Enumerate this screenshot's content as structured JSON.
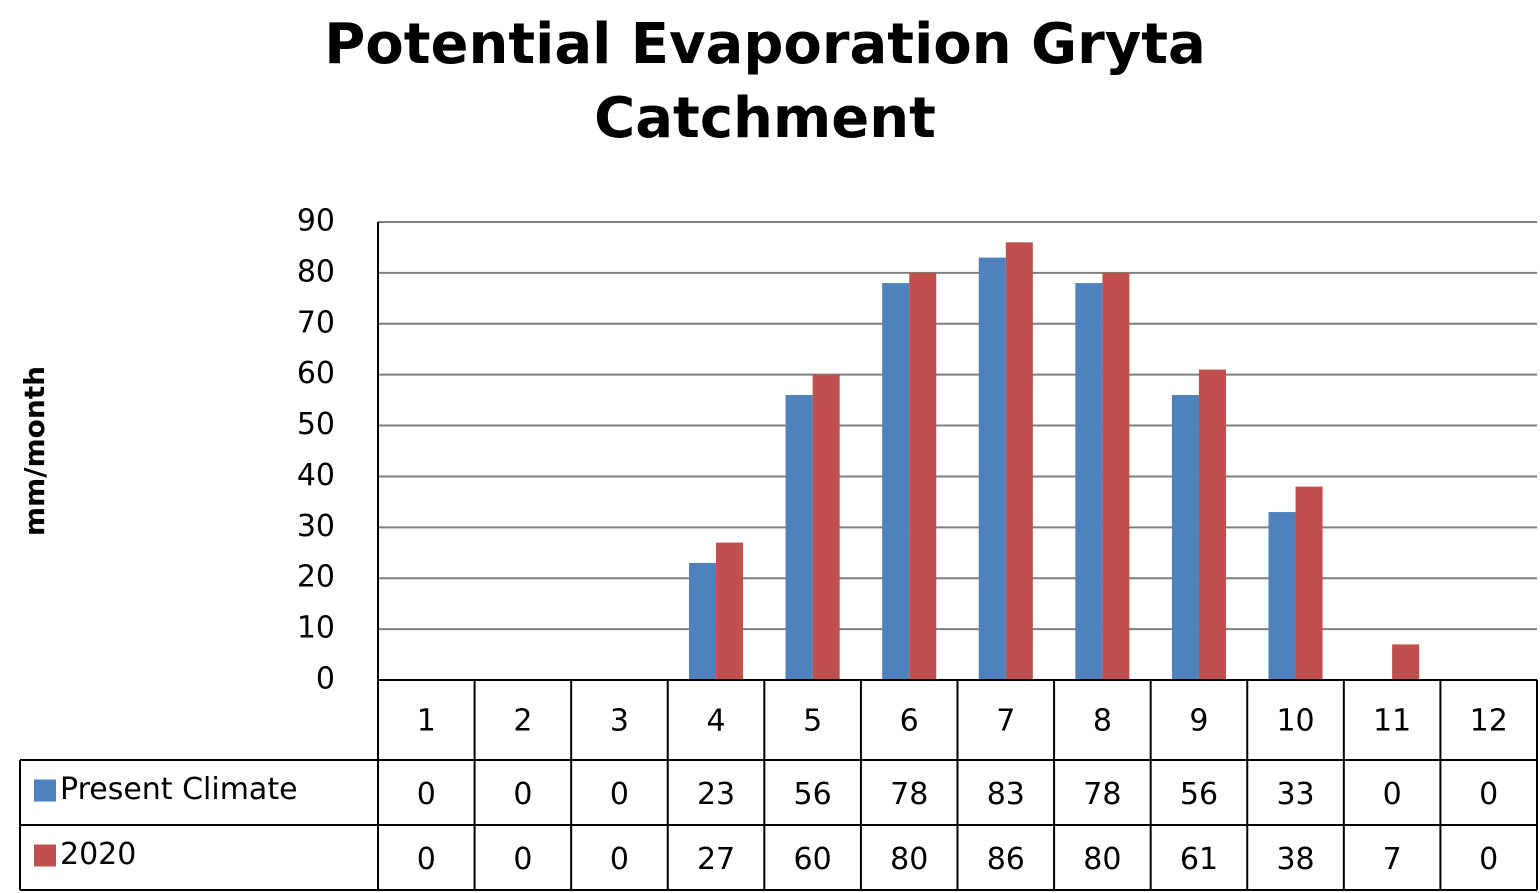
{
  "chart_data": {
    "type": "bar",
    "title": "Potential Evaporation Gryta Catchment",
    "y_label": "mm/month",
    "categories": [
      "1",
      "2",
      "3",
      "4",
      "5",
      "6",
      "7",
      "8",
      "9",
      "10",
      "11",
      "12"
    ],
    "series": [
      {
        "name": "Present Climate",
        "color": "#4f81bd",
        "values": [
          0,
          0,
          0,
          23,
          56,
          78,
          83,
          78,
          56,
          33,
          0,
          0
        ]
      },
      {
        "name": "2020",
        "color": "#c0504d",
        "values": [
          0,
          0,
          0,
          27,
          60,
          80,
          86,
          80,
          61,
          38,
          7,
          0
        ]
      }
    ],
    "ylim": [
      0,
      90
    ],
    "yticks": [
      0,
      10,
      20,
      30,
      40,
      50,
      60,
      70,
      80,
      90
    ],
    "grid": true,
    "data_table": true
  }
}
